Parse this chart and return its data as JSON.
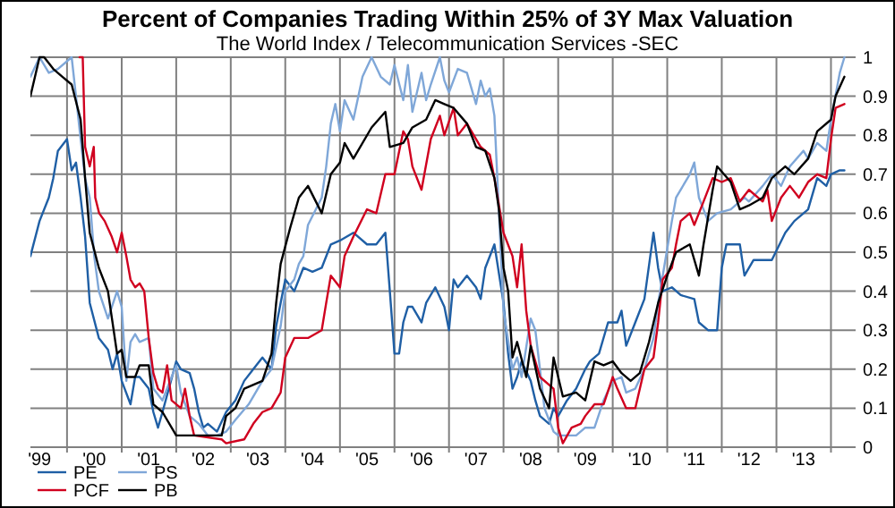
{
  "chart_data": {
    "type": "line",
    "title": "Percent of Companies Trading Within 25%  of 3Y Max Valuation",
    "subtitle": "The World Index / Telecommunication Services -SEC",
    "xlim": [
      "1999-05-01",
      "2014-06-15"
    ],
    "xticks": [
      {
        "value": "1999-07",
        "label": "'99"
      },
      {
        "value": "2000-01",
        "label": null
      },
      {
        "value": "2000-07",
        "label": "'00"
      },
      {
        "value": "2001-01",
        "label": null
      },
      {
        "value": "2001-07",
        "label": "'01"
      },
      {
        "value": "2002-01",
        "label": null
      },
      {
        "value": "2002-07",
        "label": "'02"
      },
      {
        "value": "2003-01",
        "label": null
      },
      {
        "value": "2003-07",
        "label": "'03"
      },
      {
        "value": "2004-01",
        "label": null
      },
      {
        "value": "2004-07",
        "label": "'04"
      },
      {
        "value": "2005-01",
        "label": null
      },
      {
        "value": "2005-07",
        "label": "'05"
      },
      {
        "value": "2006-01",
        "label": null
      },
      {
        "value": "2006-07",
        "label": "'06"
      },
      {
        "value": "2007-01",
        "label": null
      },
      {
        "value": "2007-07",
        "label": "'07"
      },
      {
        "value": "2008-01",
        "label": null
      },
      {
        "value": "2008-07",
        "label": "'08"
      },
      {
        "value": "2009-01",
        "label": null
      },
      {
        "value": "2009-07",
        "label": "'09"
      },
      {
        "value": "2010-01",
        "label": null
      },
      {
        "value": "2010-07",
        "label": "'10"
      },
      {
        "value": "2011-01",
        "label": null
      },
      {
        "value": "2011-07",
        "label": "'11"
      },
      {
        "value": "2012-01",
        "label": null
      },
      {
        "value": "2012-07",
        "label": "'12"
      },
      {
        "value": "2013-01",
        "label": null
      },
      {
        "value": "2013-07",
        "label": "'13"
      },
      {
        "value": "2014-01",
        "label": null
      }
    ],
    "ylim": [
      0,
      1
    ],
    "yticks": [
      0,
      0.1,
      0.2,
      0.3,
      0.4,
      0.5,
      0.6,
      0.7,
      0.8,
      0.9,
      1
    ],
    "grid": true,
    "legend": "bottom left",
    "line_style": "solid",
    "marker": "none",
    "series": [
      {
        "name": "PE",
        "color": "#1f5fa5",
        "x": [
          "1999-05",
          "1999-07",
          "1999-09",
          "1999-10",
          "1999-11",
          "2000-01",
          "2000-02",
          "2000-03",
          "2000-04",
          "2000-05",
          "2000-06",
          "2000-08",
          "2000-10",
          "2000-11",
          "2000-12",
          "2001-01",
          "2001-03",
          "2001-04",
          "2001-05",
          "2001-07",
          "2001-08",
          "2001-09",
          "2001-10",
          "2002-01",
          "2002-02",
          "2002-04",
          "2002-05",
          "2002-06",
          "2002-07",
          "2002-08",
          "2002-10",
          "2002-12",
          "2003-02",
          "2003-04",
          "2003-06",
          "2003-08",
          "2003-10",
          "2003-11",
          "2003-12",
          "2004-01",
          "2004-03",
          "2004-05",
          "2004-07",
          "2004-09",
          "2004-11",
          "2005-01",
          "2005-04",
          "2005-07",
          "2005-09",
          "2005-11",
          "2005-12",
          "2006-01",
          "2006-02",
          "2006-03",
          "2006-04",
          "2006-05",
          "2006-07",
          "2006-08",
          "2006-10",
          "2006-12",
          "2007-01",
          "2007-02",
          "2007-03",
          "2007-05",
          "2007-07",
          "2007-08",
          "2007-09",
          "2007-11",
          "2008-01",
          "2008-02",
          "2008-03",
          "2008-04",
          "2008-05",
          "2008-07",
          "2008-08",
          "2008-09",
          "2008-11",
          "2008-12",
          "2009-01",
          "2009-03",
          "2009-05",
          "2009-07",
          "2009-08",
          "2009-10",
          "2009-12",
          "2010-02",
          "2010-03",
          "2010-04",
          "2010-06",
          "2010-08",
          "2010-10",
          "2010-11",
          "2010-12",
          "2011-02",
          "2011-04",
          "2011-07",
          "2011-08",
          "2011-10",
          "2011-12",
          "2012-01",
          "2012-02",
          "2012-05",
          "2012-06",
          "2012-08",
          "2012-11",
          "2012-12",
          "2013-03",
          "2013-05",
          "2013-08",
          "2013-10",
          "2013-12",
          "2014-01",
          "2014-03",
          "2014-04"
        ],
        "values": [
          0.49,
          0.58,
          0.64,
          0.69,
          0.76,
          0.79,
          0.71,
          0.73,
          0.64,
          0.54,
          0.37,
          0.28,
          0.25,
          0.2,
          0.24,
          0.17,
          0.11,
          0.18,
          0.18,
          0.15,
          0.09,
          0.05,
          0.09,
          0.22,
          0.2,
          0.19,
          0.15,
          0.09,
          0.05,
          0.06,
          0.04,
          0.09,
          0.12,
          0.17,
          0.2,
          0.23,
          0.2,
          0.31,
          0.37,
          0.43,
          0.4,
          0.46,
          0.45,
          0.46,
          0.52,
          0.53,
          0.55,
          0.52,
          0.52,
          0.55,
          0.4,
          0.24,
          0.24,
          0.32,
          0.36,
          0.36,
          0.32,
          0.37,
          0.41,
          0.36,
          0.3,
          0.43,
          0.41,
          0.44,
          0.41,
          0.38,
          0.46,
          0.52,
          0.37,
          0.24,
          0.15,
          0.18,
          0.22,
          0.17,
          0.12,
          0.08,
          0.06,
          0.1,
          0.08,
          0.12,
          0.15,
          0.2,
          0.22,
          0.24,
          0.32,
          0.32,
          0.35,
          0.26,
          0.32,
          0.38,
          0.55,
          0.46,
          0.4,
          0.41,
          0.39,
          0.38,
          0.32,
          0.3,
          0.3,
          0.46,
          0.52,
          0.52,
          0.44,
          0.48,
          0.48,
          0.48,
          0.55,
          0.58,
          0.61,
          0.69,
          0.67,
          0.7,
          0.71,
          0.71
        ]
      },
      {
        "name": "PS",
        "color": "#7fa7d8",
        "x": [
          "1999-05",
          "1999-07",
          "1999-09",
          "1999-11",
          "2000-02",
          "2000-03",
          "2000-04",
          "2000-05",
          "2000-06",
          "2000-07",
          "2000-08",
          "2000-10",
          "2000-12",
          "2001-01",
          "2001-02",
          "2001-03",
          "2001-04",
          "2001-05",
          "2001-07",
          "2001-08",
          "2001-10",
          "2001-12",
          "2002-01",
          "2002-02",
          "2002-04",
          "2002-06",
          "2002-08",
          "2002-10",
          "2002-12",
          "2003-02",
          "2003-05",
          "2003-08",
          "2003-10",
          "2003-12",
          "2004-01",
          "2004-03",
          "2004-04",
          "2004-05",
          "2004-06",
          "2004-09",
          "2004-10",
          "2004-11",
          "2004-12",
          "2005-01",
          "2005-02",
          "2005-04",
          "2005-06",
          "2005-08",
          "2005-10",
          "2005-12",
          "2006-01",
          "2006-03",
          "2006-04",
          "2006-05",
          "2006-07",
          "2006-08",
          "2006-09",
          "2006-11",
          "2006-12",
          "2007-01",
          "2007-03",
          "2007-05",
          "2007-07",
          "2007-08",
          "2007-09",
          "2007-10",
          "2007-11",
          "2008-01",
          "2008-03",
          "2008-04",
          "2008-05",
          "2008-07",
          "2008-08",
          "2008-09",
          "2008-10",
          "2008-12",
          "2009-01",
          "2009-05",
          "2009-07",
          "2009-09",
          "2009-11",
          "2010-01",
          "2010-03",
          "2010-04",
          "2010-06",
          "2010-08",
          "2010-10",
          "2010-11",
          "2011-02",
          "2011-03",
          "2011-06",
          "2011-07",
          "2011-08",
          "2011-10",
          "2011-12",
          "2012-03",
          "2012-06",
          "2012-07",
          "2012-10",
          "2012-12",
          "2013-02",
          "2013-04",
          "2013-07",
          "2013-08",
          "2013-10",
          "2013-12",
          "2014-01",
          "2014-03",
          "2014-04"
        ],
        "values": [
          0.95,
          1.0,
          0.96,
          0.97,
          1.0,
          0.9,
          0.79,
          0.69,
          0.64,
          0.49,
          0.4,
          0.33,
          0.4,
          0.36,
          0.17,
          0.27,
          0.29,
          0.27,
          0.28,
          0.15,
          0.12,
          0.18,
          0.21,
          0.14,
          0.08,
          0.06,
          0.03,
          0.03,
          0.04,
          0.07,
          0.11,
          0.17,
          0.2,
          0.31,
          0.4,
          0.43,
          0.47,
          0.49,
          0.57,
          0.64,
          0.72,
          0.83,
          0.88,
          0.81,
          0.89,
          0.84,
          0.95,
          1.0,
          0.95,
          0.93,
          0.98,
          0.89,
          0.98,
          0.86,
          0.96,
          0.89,
          0.93,
          1.0,
          0.94,
          0.91,
          0.97,
          0.96,
          0.88,
          0.94,
          0.9,
          0.92,
          0.85,
          0.35,
          0.2,
          0.23,
          0.18,
          0.33,
          0.3,
          0.2,
          0.1,
          0.04,
          0.03,
          0.03,
          0.05,
          0.05,
          0.12,
          0.17,
          0.18,
          0.14,
          0.15,
          0.2,
          0.28,
          0.37,
          0.58,
          0.64,
          0.7,
          0.73,
          0.64,
          0.58,
          0.6,
          0.61,
          0.64,
          0.63,
          0.67,
          0.7,
          0.67,
          0.72,
          0.76,
          0.74,
          0.78,
          0.76,
          0.84,
          0.96,
          1.0
        ]
      },
      {
        "name": "PCF",
        "color": "#d0001f",
        "x": [
          "2000-03-25",
          "2000-04-15",
          "2000-05-01",
          "2000-06-01",
          "2000-06-28",
          "2000-07-08",
          "2000-08-03",
          "2000-09-09",
          "2000-10-26",
          "2000-12-01",
          "2001-01",
          "2001-02",
          "2001-03",
          "2001-04",
          "2001-05",
          "2001-06",
          "2001-07",
          "2001-08",
          "2001-09",
          "2001-10",
          "2001-11",
          "2001-12",
          "2002-02",
          "2002-03",
          "2002-04",
          "2002-05",
          "2002-11",
          "2002-12",
          "2003-04",
          "2003-06",
          "2003-08",
          "2003-10",
          "2003-12",
          "2004-01",
          "2004-03",
          "2004-06",
          "2004-09",
          "2004-10",
          "2004-11",
          "2005-01",
          "2005-02",
          "2005-04",
          "2005-07",
          "2005-09",
          "2005-11",
          "2006-01",
          "2006-03",
          "2006-04",
          "2006-05",
          "2006-07",
          "2006-09",
          "2006-11",
          "2006-12",
          "2007-02",
          "2007-03",
          "2007-05",
          "2007-08",
          "2007-10",
          "2007-11",
          "2008-01",
          "2008-03",
          "2008-04",
          "2008-05",
          "2008-06",
          "2008-07",
          "2008-09",
          "2008-12",
          "2009-01",
          "2009-02",
          "2009-04",
          "2009-06",
          "2009-07",
          "2009-09",
          "2009-11",
          "2010-01",
          "2010-02",
          "2010-04",
          "2010-06",
          "2010-08",
          "2010-10",
          "2010-11",
          "2010-12",
          "2011-02",
          "2011-03",
          "2011-04",
          "2011-06",
          "2011-07",
          "2011-09",
          "2011-11",
          "2012-01",
          "2012-03",
          "2012-05",
          "2012-07",
          "2012-10",
          "2012-11",
          "2012-12",
          "2013-02",
          "2013-04",
          "2013-06",
          "2013-08",
          "2013-10",
          "2013-12",
          "2014-01",
          "2014-02",
          "2014-04"
        ],
        "values": [
          1.0,
          1.0,
          0.77,
          0.72,
          0.77,
          0.64,
          0.6,
          0.58,
          0.54,
          0.5,
          0.55,
          0.49,
          0.43,
          0.41,
          0.42,
          0.4,
          0.28,
          0.19,
          0.15,
          0.14,
          0.21,
          0.12,
          0.1,
          0.15,
          0.08,
          0.03,
          0.02,
          0.01,
          0.02,
          0.06,
          0.09,
          0.1,
          0.14,
          0.23,
          0.28,
          0.28,
          0.3,
          0.37,
          0.44,
          0.41,
          0.49,
          0.54,
          0.61,
          0.6,
          0.7,
          0.7,
          0.81,
          0.79,
          0.72,
          0.66,
          0.79,
          0.85,
          0.8,
          0.87,
          0.8,
          0.83,
          0.77,
          0.75,
          0.69,
          0.55,
          0.49,
          0.41,
          0.52,
          0.35,
          0.26,
          0.18,
          0.15,
          0.05,
          0.01,
          0.05,
          0.06,
          0.08,
          0.11,
          0.11,
          0.18,
          0.15,
          0.1,
          0.1,
          0.2,
          0.23,
          0.32,
          0.43,
          0.46,
          0.52,
          0.58,
          0.6,
          0.57,
          0.63,
          0.69,
          0.68,
          0.69,
          0.63,
          0.66,
          0.63,
          0.66,
          0.58,
          0.64,
          0.67,
          0.64,
          0.68,
          0.7,
          0.69,
          0.79,
          0.87,
          0.88
        ]
      },
      {
        "name": "PB",
        "color": "#000000",
        "x": [
          "1999-05",
          "1999-07",
          "1999-08",
          "1999-10",
          "1999-12",
          "2000-02",
          "2000-04",
          "2000-05",
          "2000-06",
          "2000-08",
          "2000-10",
          "2000-12",
          "2001-01",
          "2001-02",
          "2001-04",
          "2001-05",
          "2001-07",
          "2001-08",
          "2001-10",
          "2002-01",
          "2002-11",
          "2002-12",
          "2003-02",
          "2003-04",
          "2003-08",
          "2003-10",
          "2003-11",
          "2003-12",
          "2004-02",
          "2004-04",
          "2004-06",
          "2004-09",
          "2004-11",
          "2005-01",
          "2005-02",
          "2005-04",
          "2005-08",
          "2005-11",
          "2005-12",
          "2006-03",
          "2006-05",
          "2006-08",
          "2006-10",
          "2006-12",
          "2007-02",
          "2007-05",
          "2007-07",
          "2007-09",
          "2007-11",
          "2007-12",
          "2008-01",
          "2008-02",
          "2008-03",
          "2008-04",
          "2008-06",
          "2008-07",
          "2008-09",
          "2008-11",
          "2008-12",
          "2009-02",
          "2009-05",
          "2009-07",
          "2009-09",
          "2009-11",
          "2010-01",
          "2010-03",
          "2010-05",
          "2010-07",
          "2010-09",
          "2010-11",
          "2011-01",
          "2011-03",
          "2011-06",
          "2011-08",
          "2011-09",
          "2011-11",
          "2011-12",
          "2012-03",
          "2012-05",
          "2012-07",
          "2012-10",
          "2012-12",
          "2013-03",
          "2013-05",
          "2013-08",
          "2013-10",
          "2014-01",
          "2014-02",
          "2014-04"
        ],
        "values": [
          0.9,
          1.0,
          1.0,
          0.97,
          0.95,
          0.93,
          0.84,
          0.69,
          0.55,
          0.46,
          0.4,
          0.24,
          0.25,
          0.18,
          0.18,
          0.21,
          0.21,
          0.11,
          0.09,
          0.03,
          0.03,
          0.08,
          0.1,
          0.15,
          0.17,
          0.24,
          0.37,
          0.47,
          0.56,
          0.64,
          0.67,
          0.6,
          0.7,
          0.73,
          0.78,
          0.74,
          0.82,
          0.86,
          0.77,
          0.78,
          0.82,
          0.84,
          0.89,
          0.88,
          0.87,
          0.83,
          0.77,
          0.76,
          0.69,
          0.61,
          0.46,
          0.4,
          0.23,
          0.27,
          0.18,
          0.26,
          0.15,
          0.1,
          0.23,
          0.13,
          0.14,
          0.12,
          0.22,
          0.21,
          0.22,
          0.19,
          0.17,
          0.19,
          0.27,
          0.37,
          0.44,
          0.5,
          0.52,
          0.44,
          0.52,
          0.66,
          0.72,
          0.68,
          0.61,
          0.62,
          0.64,
          0.69,
          0.72,
          0.7,
          0.74,
          0.81,
          0.84,
          0.9,
          0.95
        ]
      }
    ]
  }
}
